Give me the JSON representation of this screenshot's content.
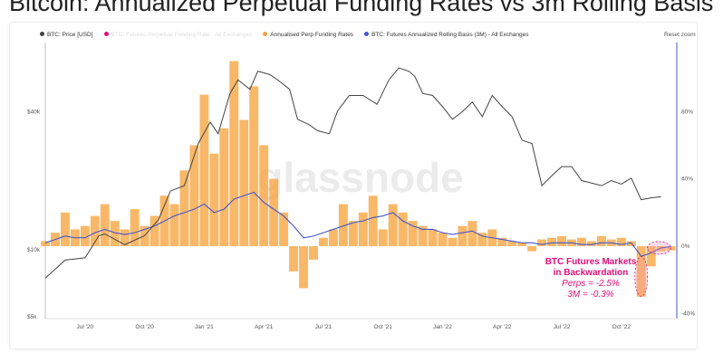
{
  "title": "Bitcoin: Annualized Perpetual Funding Rates vs 3m Rolling Basis",
  "reset_zoom": "Reset zoom",
  "watermark": "glassnode",
  "annotation": {
    "line1": "BTC Futures Markets",
    "line2": "in Backwardation",
    "line3": "Perps = -2.5%",
    "line4": "3M = -0.3%"
  },
  "colors": {
    "price": "#444444",
    "funding": "#f7a035",
    "basis": "#4455cc",
    "pink": "#e0107a",
    "faded": "#f4a6cc"
  },
  "chart_data": {
    "type": "line",
    "title": "Bitcoin: Annualized Perpetual Funding Rates vs 3m Rolling Basis",
    "legend": [
      {
        "name": "BTC: Price [USD]",
        "color": "#444444"
      },
      {
        "name": "BTC: Futures Perpetual Funding Rate - All Exchanges",
        "color": "#e0107a",
        "hidden": true
      },
      {
        "name": "Annualised Perp Funding Rates",
        "color": "#f7a035"
      },
      {
        "name": "BTC: Futures Annualized Rolling Basis (3M) - All Exchanges",
        "color": "#4455cc"
      }
    ],
    "x_ticks": [
      {
        "label": "Jul '20",
        "t": 0
      },
      {
        "label": "Oct '20",
        "t": 3
      },
      {
        "label": "Jan '21",
        "t": 6
      },
      {
        "label": "Apr '21",
        "t": 9
      },
      {
        "label": "Jul '21",
        "t": 12
      },
      {
        "label": "Oct '21",
        "t": 15
      },
      {
        "label": "Jan '22",
        "t": 18
      },
      {
        "label": "Apr '22",
        "t": 21
      },
      {
        "label": "Jul '22",
        "t": 24
      },
      {
        "label": "Oct '22",
        "t": 27
      }
    ],
    "xlim": [
      -2,
      29.7
    ],
    "left_axis": {
      "scale": "log",
      "ylim": [
        5000,
        80000
      ],
      "ticks": [
        {
          "label": "$5k",
          "v": 5000
        },
        {
          "label": "$10k",
          "v": 10000
        },
        {
          "label": "$40k",
          "v": 40000
        }
      ]
    },
    "right_axis": {
      "ylim": [
        -43,
        121
      ],
      "ticks": [
        {
          "label": "-40%",
          "v": -40
        },
        {
          "label": "0%",
          "v": 0
        },
        {
          "label": "40%",
          "v": 40
        },
        {
          "label": "80%",
          "v": 80
        }
      ]
    },
    "price": {
      "t": [
        -2,
        -1,
        0,
        0.7,
        1,
        2,
        3,
        3.7,
        4.3,
        5,
        5.7,
        6.3,
        6.7,
        7.3,
        7.7,
        8.3,
        8.7,
        9.3,
        9.7,
        10.3,
        10.7,
        11.3,
        11.7,
        12.3,
        12.7,
        13.3,
        14,
        14.7,
        15.3,
        15.8,
        16.3,
        16.6,
        17,
        17.5,
        18,
        18.5,
        19,
        19.5,
        20,
        20.5,
        21,
        21.5,
        22,
        22.5,
        23,
        23.5,
        24,
        24.5,
        25,
        25.5,
        26,
        26.5,
        27,
        27.5,
        28,
        28.5,
        29
      ],
      "v": [
        7500,
        9000,
        9200,
        11500,
        11700,
        10500,
        11500,
        13500,
        18000,
        19000,
        29000,
        36000,
        32000,
        48000,
        55000,
        50000,
        60000,
        58000,
        55000,
        50000,
        37000,
        35000,
        33000,
        32000,
        40000,
        47000,
        47000,
        43000,
        55000,
        62000,
        60000,
        57000,
        48000,
        47000,
        42000,
        37000,
        40000,
        44000,
        38000,
        47000,
        42000,
        38000,
        30000,
        29000,
        19000,
        21000,
        23000,
        23000,
        20000,
        19500,
        19000,
        20000,
        19300,
        20500,
        16500,
        16800,
        17000
      ]
    },
    "funding_t0": -2,
    "step": 0.5,
    "funding": [
      3,
      8,
      20,
      10,
      12,
      18,
      25,
      15,
      10,
      22,
      12,
      18,
      30,
      25,
      45,
      60,
      90,
      55,
      70,
      110,
      75,
      95,
      60,
      40,
      20,
      -15,
      -25,
      -8,
      5,
      10,
      25,
      15,
      20,
      30,
      10,
      25,
      20,
      15,
      12,
      10,
      8,
      5,
      12,
      15,
      8,
      10,
      5,
      3,
      2,
      -3,
      4,
      5,
      6,
      4,
      5,
      3,
      6,
      4,
      5,
      3,
      -30,
      -12,
      -3,
      -2.5
    ],
    "basis": [
      2,
      4,
      6,
      5,
      5,
      8,
      10,
      8,
      7,
      8,
      10,
      12,
      15,
      18,
      20,
      22,
      25,
      20,
      22,
      28,
      30,
      32,
      26,
      22,
      18,
      12,
      5,
      6,
      8,
      10,
      12,
      14,
      15,
      17,
      18,
      20,
      15,
      12,
      10,
      10,
      8,
      7,
      8,
      9,
      6,
      5,
      4,
      3,
      2,
      2,
      1,
      2,
      2,
      2,
      1,
      1,
      2,
      2,
      1,
      2,
      -6,
      -4,
      -1,
      -0.3
    ]
  }
}
